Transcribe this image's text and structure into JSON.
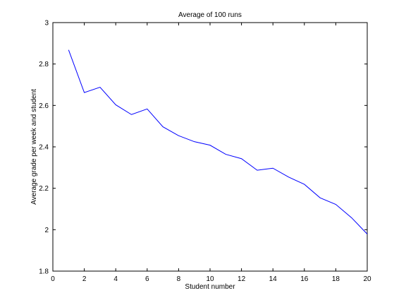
{
  "chart_data": {
    "type": "line",
    "title": "Average of 100 runs",
    "xlabel": "Student number",
    "ylabel": "Average grade per week and student",
    "xlim": [
      0,
      20
    ],
    "ylim": [
      1.8,
      3
    ],
    "xticks": [
      0,
      2,
      4,
      6,
      8,
      10,
      12,
      14,
      16,
      18,
      20
    ],
    "yticks": [
      1.8,
      2,
      2.2,
      2.4,
      2.6,
      2.8,
      3
    ],
    "ytick_labels": [
      "1.8",
      "2",
      "2.2",
      "2.4",
      "2.6",
      "2.8",
      "3"
    ],
    "grid": false,
    "line_color": "#0000ff",
    "series": [
      {
        "x": [
          1,
          2,
          3,
          4,
          5,
          6,
          7,
          8,
          9,
          10,
          11,
          12,
          13,
          14,
          15,
          16,
          17,
          18,
          19,
          20
        ],
        "values": [
          2.868,
          2.662,
          2.688,
          2.603,
          2.556,
          2.583,
          2.497,
          2.454,
          2.425,
          2.408,
          2.364,
          2.343,
          2.287,
          2.297,
          2.254,
          2.219,
          2.154,
          2.122,
          2.058,
          1.979
        ]
      }
    ]
  }
}
